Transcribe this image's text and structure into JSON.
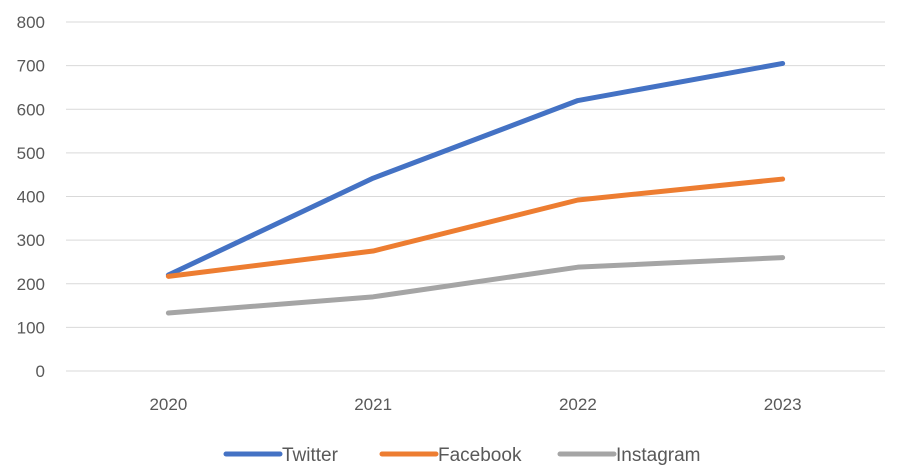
{
  "chart_data": {
    "type": "line",
    "title": "",
    "xlabel": "",
    "ylabel": "",
    "categories": [
      "2020",
      "2021",
      "2022",
      "2023"
    ],
    "ylim": [
      0,
      800
    ],
    "yticks": [
      0,
      100,
      200,
      300,
      400,
      500,
      600,
      700,
      800
    ],
    "grid": true,
    "legend_position": "bottom",
    "series": [
      {
        "name": "Twitter",
        "color": "#4472c4",
        "values": [
          220,
          442,
          620,
          705
        ]
      },
      {
        "name": "Facebook",
        "color": "#ed7d31",
        "values": [
          217,
          275,
          392,
          440
        ]
      },
      {
        "name": "Instagram",
        "color": "#a5a5a5",
        "values": [
          133,
          170,
          238,
          260
        ]
      }
    ]
  }
}
